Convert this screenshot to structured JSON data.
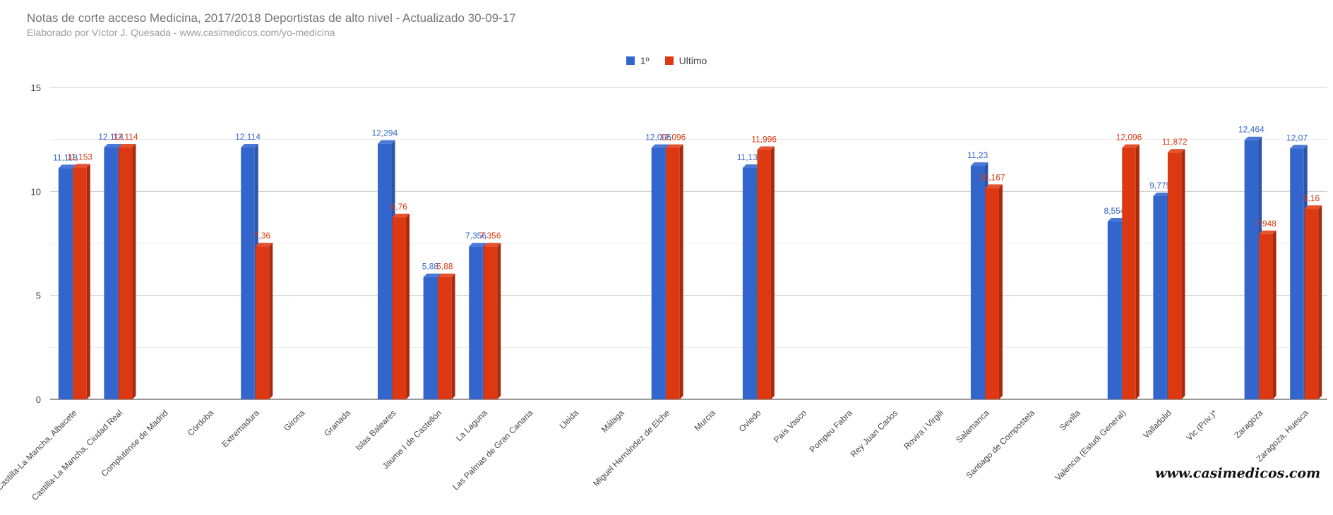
{
  "chart_data": {
    "type": "bar",
    "title": "Notas de corte acceso Medicina, 2017/2018 Deportistas de alto nivel - Actualizado 30-09-17",
    "subtitle": "Elaborado por Víctor J. Quesada - www.casimedicos.com/yo-medicina",
    "categories": [
      "Castilla-La Mancha, Albacete",
      "Castilla-La Mancha, Ciudad Real",
      "Complutense de Madrid",
      "Córdoba",
      "Extremadura",
      "Girona",
      "Granada",
      "Islas Baleares",
      "Jaume I de Castellón",
      "La Laguna",
      "Las Palmas de Gran Canaria",
      "Lleida",
      "Málaga",
      "Miguel Hernández de Elche",
      "Murcia",
      "Oviedo",
      "País Vasco",
      "Pompeu Fabra",
      "Rey Juan Carlos",
      "Rovira i Virgili",
      "Salamanca",
      "Santiago de Compostela",
      "Sevilla",
      "Valencia (Estudi General)",
      "Valladolid",
      "Vic (Priv.)*",
      "Zaragoza",
      "Zaragoza, Huesca"
    ],
    "series": [
      {
        "name": "1º",
        "color": "#3366cc",
        "values": [
          11.118,
          12.114,
          null,
          null,
          12.114,
          null,
          null,
          12.294,
          5.88,
          7.356,
          null,
          null,
          null,
          12.096,
          null,
          11.132,
          null,
          null,
          null,
          null,
          11.23,
          null,
          null,
          8.554,
          9.775,
          null,
          12.464,
          12.07
        ],
        "labels": [
          "11,118",
          "12,114",
          "",
          "",
          "12,114",
          "",
          "",
          "12,294",
          "5,88",
          "7,356",
          "",
          "",
          "",
          "12,096",
          "",
          "11,132",
          "",
          "",
          "",
          "",
          "11,23",
          "",
          "",
          "8,554",
          "9,775",
          "",
          "12,464",
          "12,07"
        ]
      },
      {
        "name": "Ultimo",
        "color": "#dc3912",
        "values": [
          11.153,
          12.114,
          null,
          null,
          7.36,
          null,
          null,
          8.76,
          5.88,
          7.356,
          null,
          null,
          null,
          12.096,
          null,
          11.996,
          null,
          null,
          null,
          null,
          10.167,
          null,
          null,
          12.096,
          11.872,
          null,
          7.948,
          9.16
        ],
        "labels": [
          "11,153",
          "12,114",
          "",
          "",
          "7,36",
          "",
          "",
          "8,76",
          "5,88",
          "7,356",
          "",
          "",
          "",
          "12,096",
          "",
          "11,996",
          "",
          "",
          "",
          "",
          "10,167",
          "",
          "",
          "12,096",
          "11,872",
          "",
          "7,948",
          "9,16"
        ]
      }
    ],
    "yticks": [
      "0",
      "5",
      "10",
      "15"
    ],
    "ylim": [
      0,
      15
    ],
    "grid": true,
    "legend_position": "top"
  },
  "watermark": "www.casimedicos.com"
}
